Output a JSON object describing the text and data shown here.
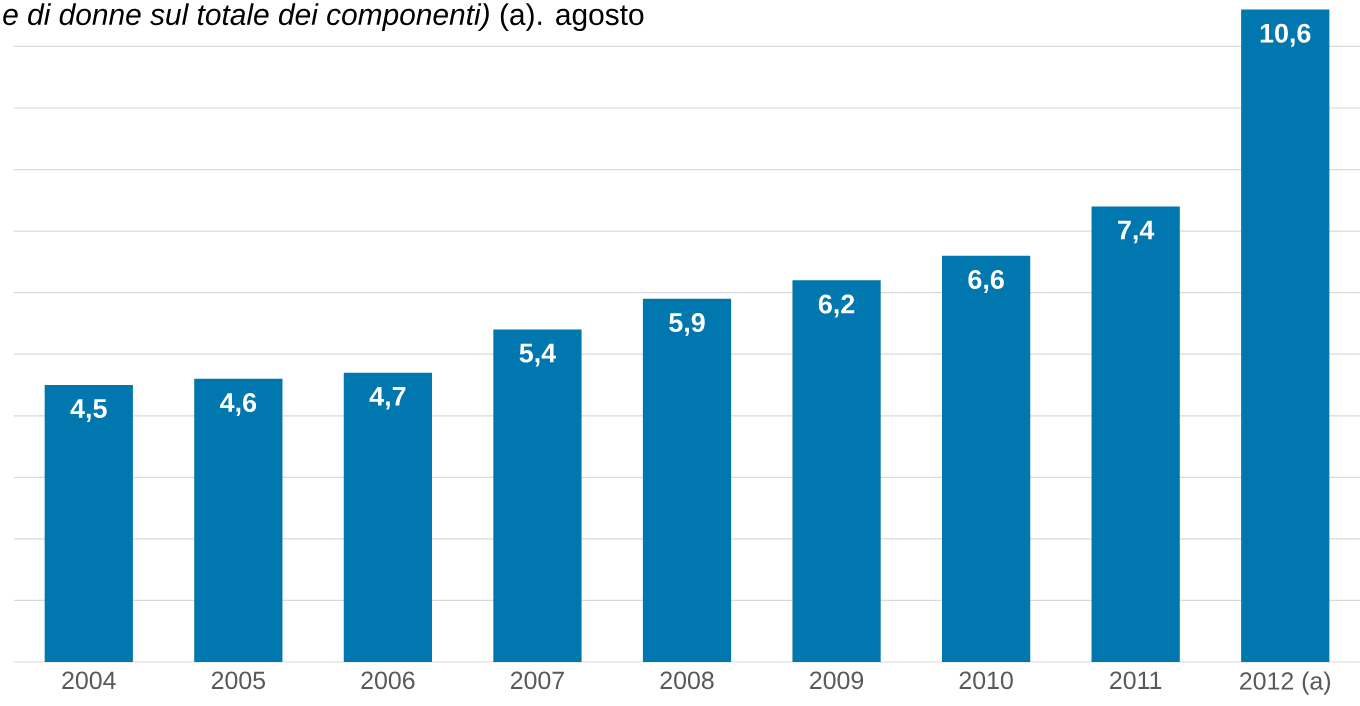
{
  "chart_data": {
    "type": "bar",
    "title": "*e di donne sul totale dei componenti)* (a). agosto",
    "categories": [
      "2004",
      "2005",
      "2006",
      "2007",
      "2008",
      "2009",
      "2010",
      "2011",
      "2012 (a)"
    ],
    "values": [
      4.5,
      4.6,
      4.7,
      5.4,
      5.9,
      6.2,
      6.6,
      7.4,
      10.6
    ],
    "value_labels": [
      "4,5",
      "4,6",
      "4,7",
      "5,4",
      "5,9",
      "6,2",
      "6,6",
      "7,4",
      "10,6"
    ],
    "color": "#0077ae",
    "yticks": [
      {
        "value": 0,
        "label": null
      },
      {
        "value": 1,
        "label": null
      },
      {
        "value": 2,
        "label": null
      },
      {
        "value": 3,
        "label": null
      },
      {
        "value": 4,
        "label": null
      },
      {
        "value": 5,
        "label": null
      },
      {
        "value": 6,
        "label": null
      },
      {
        "value": 7,
        "label": null
      },
      {
        "value": 8,
        "label": null
      },
      {
        "value": 9,
        "label": null
      },
      {
        "value": 10,
        "label": null
      }
    ],
    "grid": "y",
    "tick_labels": "x"
  }
}
